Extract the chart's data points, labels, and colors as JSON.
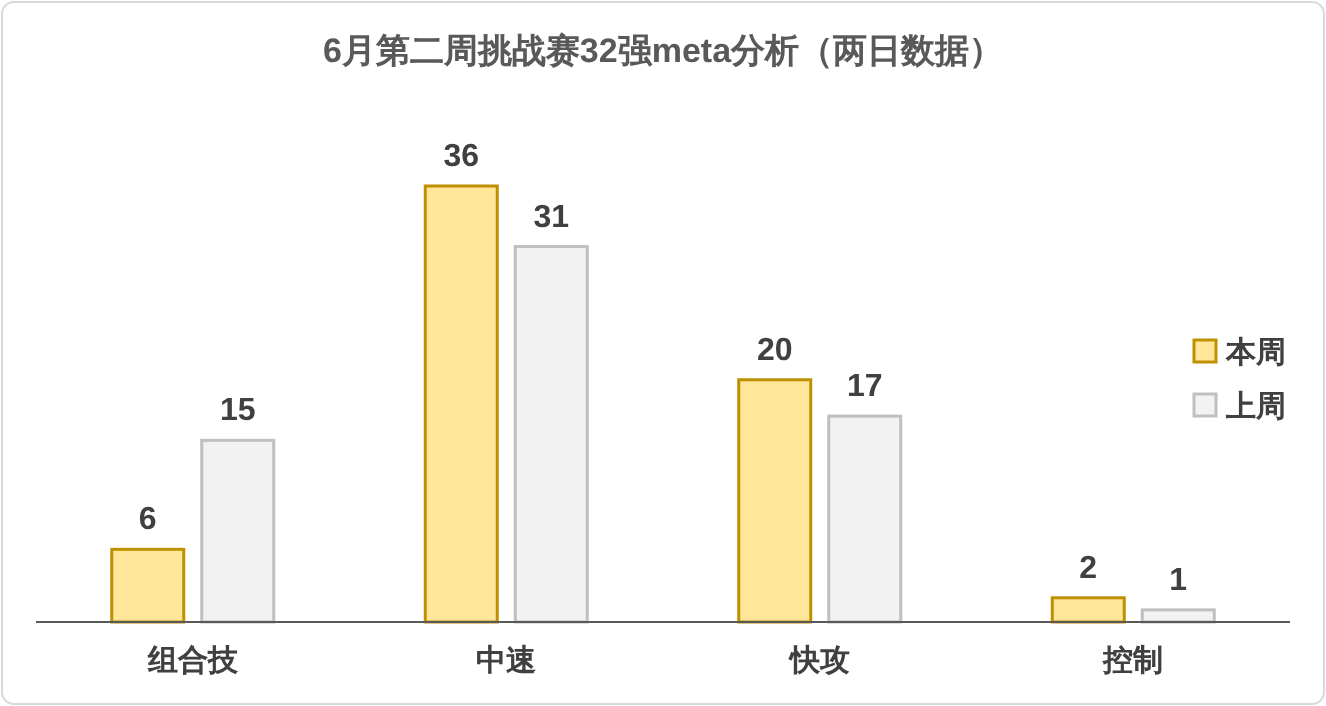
{
  "chart_data": {
    "type": "bar",
    "title": "6月第二周挑战赛32强meta分析（两日数据）",
    "categories": [
      "组合技",
      "中速",
      "快攻",
      "控制"
    ],
    "series": [
      {
        "name": "本周",
        "color": "#ffe699",
        "values": [
          6,
          36,
          20,
          2
        ]
      },
      {
        "name": "上周",
        "color": "#f2f2f2",
        "values": [
          15,
          31,
          17,
          1
        ]
      }
    ],
    "data_labels": true,
    "legend": "right"
  }
}
